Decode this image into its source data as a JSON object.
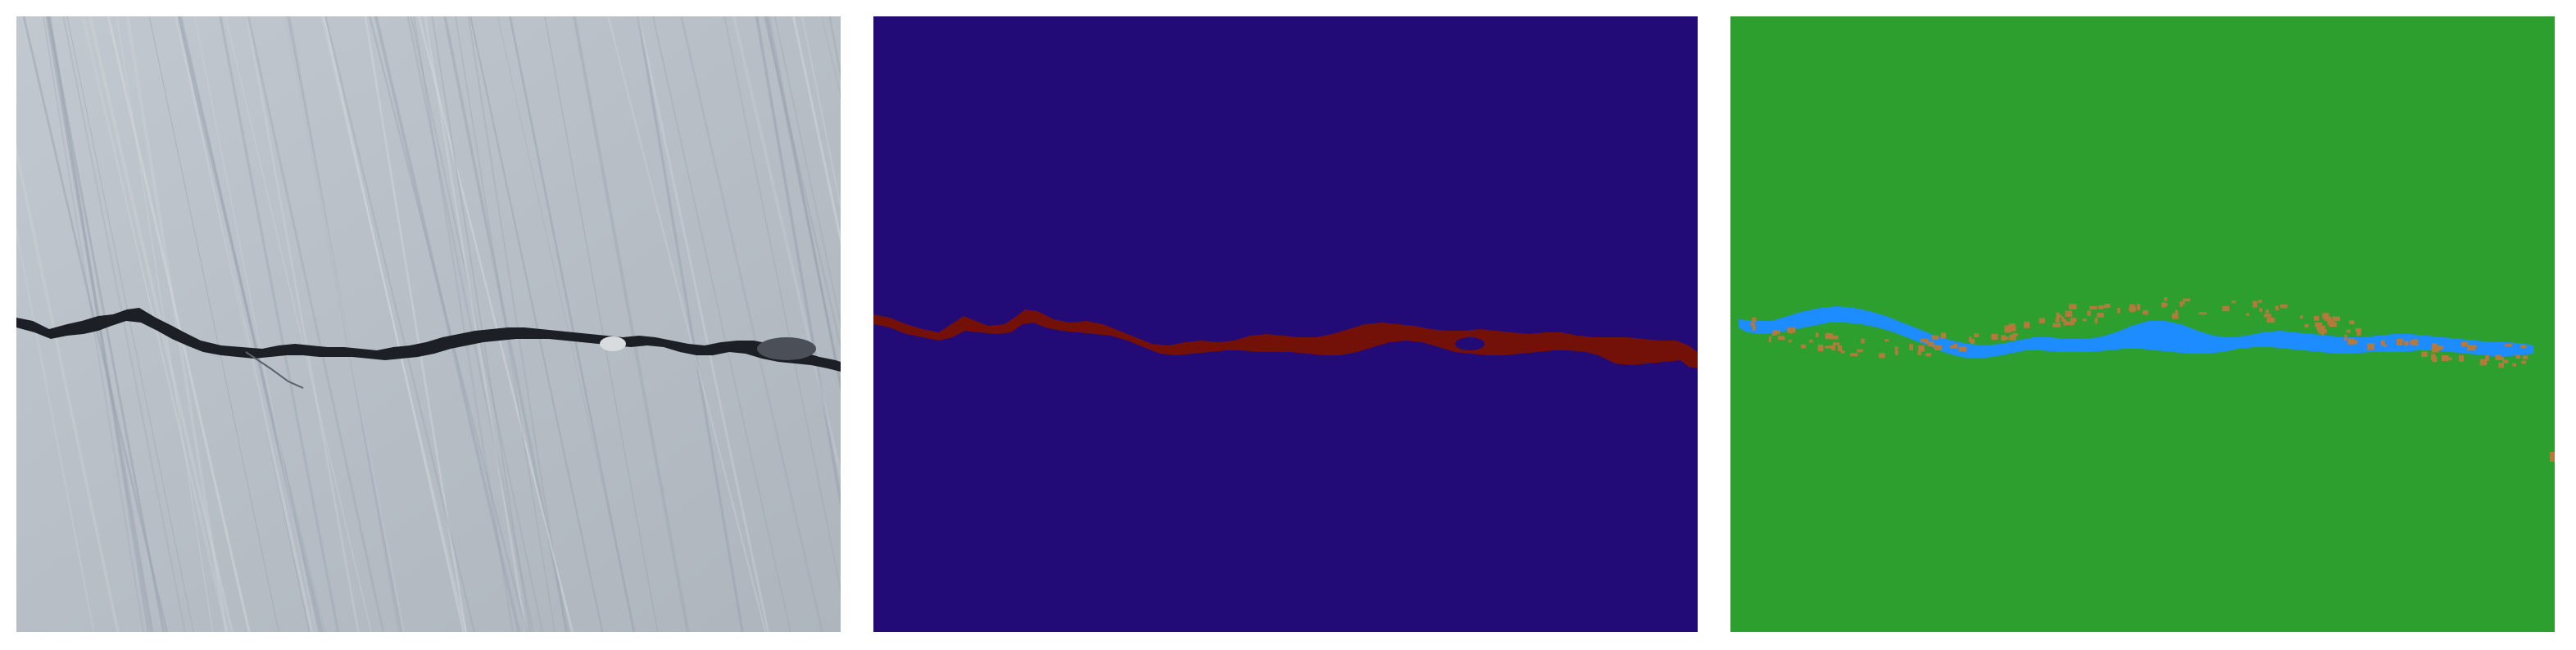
{
  "panels": [
    {
      "id": "input-photo",
      "kind": "photograph",
      "colors": {
        "concrete": "#b9c0c8",
        "crack": "#1c1f26",
        "lowlight": "#9aa3ad",
        "highlight": "#d4d9de"
      }
    },
    {
      "id": "ground-truth-mask",
      "kind": "segmentation",
      "colors": {
        "background": "#230b77",
        "crack": "#731108"
      }
    },
    {
      "id": "prediction-mask",
      "kind": "segmentation",
      "colors": {
        "background": "#2c9f2f",
        "true-positive": "#1d8cff",
        "false-positive": "#b37a3b"
      }
    }
  ]
}
